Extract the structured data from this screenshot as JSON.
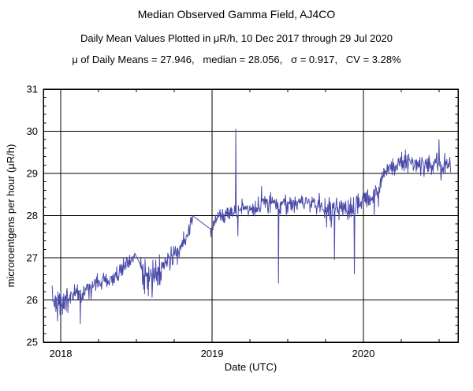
{
  "page": {
    "background": "#ffffff"
  },
  "chart_data": {
    "type": "line",
    "title": "Median Observed Gamma Field, AJ4CO",
    "subtitle": "Daily Mean Values Plotted in μR/h, 10 Dec 2017 through 29 Jul 2020",
    "stats_line": "μ of Daily Means = 27.946,   median = 28.056,   σ = 0.917,   CV = 3.28%",
    "stats": {
      "mu_of_daily_means": 27.946,
      "median": 28.056,
      "sigma": 0.917,
      "cv_percent": 3.28
    },
    "xlabel": "Date (UTC)",
    "ylabel": "microroentgens per hour (μR/h)",
    "x_axis": {
      "range": [
        2017.885,
        2020.625
      ],
      "major_ticks": [
        2018,
        2019,
        2020
      ],
      "tick_labels": [
        "2018",
        "2019",
        "2020"
      ],
      "minor_tick_interval_years": 0.25,
      "grid": true
    },
    "y_axis": {
      "range": [
        25,
        31
      ],
      "major_ticks": [
        25,
        26,
        27,
        28,
        29,
        30,
        31
      ],
      "tick_labels": [
        "25",
        "26",
        "27",
        "28",
        "29",
        "30",
        "31"
      ],
      "minor_tick_interval": 0.2,
      "grid": true
    },
    "frame_color": "#000000",
    "grid_color": "#000000",
    "legend": "none",
    "series": [
      {
        "name": "daily-mean-gamma-field",
        "color": "#4a4aaa",
        "start": 2017.943,
        "end": 2020.575,
        "points_per_year": 365,
        "noise_amplitude": 0.26,
        "seed": 20171210,
        "trend_points": [
          [
            2017.943,
            26.0
          ],
          [
            2017.975,
            25.92
          ],
          [
            2018.02,
            25.98
          ],
          [
            2018.06,
            26.1
          ],
          [
            2018.1,
            26.18
          ],
          [
            2018.14,
            26.1
          ],
          [
            2018.19,
            26.35
          ],
          [
            2018.24,
            26.4
          ],
          [
            2018.3,
            26.45
          ],
          [
            2018.36,
            26.58
          ],
          [
            2018.42,
            26.78
          ],
          [
            2018.47,
            26.98
          ],
          [
            2018.49,
            27.1
          ],
          [
            2018.525,
            26.85
          ],
          [
            2018.56,
            26.55
          ],
          [
            2018.62,
            26.6
          ],
          [
            2018.68,
            26.85
          ],
          [
            2018.74,
            27.0
          ],
          [
            2018.8,
            27.25
          ],
          [
            2018.85,
            27.7
          ],
          [
            2018.87,
            28.0
          ],
          [
            2018.99,
            27.68
          ],
          [
            2019.03,
            27.95
          ],
          [
            2019.1,
            28.05
          ],
          [
            2019.18,
            28.15
          ],
          [
            2019.28,
            28.22
          ],
          [
            2019.38,
            28.3
          ],
          [
            2019.48,
            28.25
          ],
          [
            2019.58,
            28.32
          ],
          [
            2019.68,
            28.28
          ],
          [
            2019.76,
            28.15
          ],
          [
            2019.85,
            28.22
          ],
          [
            2019.92,
            28.15
          ],
          [
            2019.98,
            28.3
          ],
          [
            2020.04,
            28.38
          ],
          [
            2020.09,
            28.5
          ],
          [
            2020.12,
            28.8
          ],
          [
            2020.15,
            29.1
          ],
          [
            2020.2,
            29.2
          ],
          [
            2020.3,
            29.25
          ],
          [
            2020.4,
            29.18
          ],
          [
            2020.5,
            29.25
          ],
          [
            2020.575,
            29.2
          ]
        ],
        "gaps": [
          [
            2018.49,
            2018.525
          ],
          [
            2018.87,
            2018.99
          ]
        ],
        "spike_events": [
          [
            2017.978,
            25.5
          ],
          [
            2018.012,
            25.66
          ],
          [
            2018.048,
            25.7
          ],
          [
            2018.13,
            25.44
          ],
          [
            2018.555,
            26.15
          ],
          [
            2018.578,
            26.1
          ],
          [
            2018.605,
            26.28
          ],
          [
            2019.157,
            30.05
          ],
          [
            2019.171,
            27.52
          ],
          [
            2019.44,
            26.4
          ],
          [
            2019.81,
            26.95
          ],
          [
            2019.94,
            26.62
          ],
          [
            2020.5,
            29.8
          ]
        ],
        "noise_boost_intervals": [
          [
            2017.943,
            2018.06,
            1.4
          ],
          [
            2018.53,
            2018.67,
            1.7
          ],
          [
            2019.68,
            2019.98,
            1.3
          ],
          [
            2020.12,
            2020.58,
            1.1
          ]
        ]
      }
    ]
  }
}
